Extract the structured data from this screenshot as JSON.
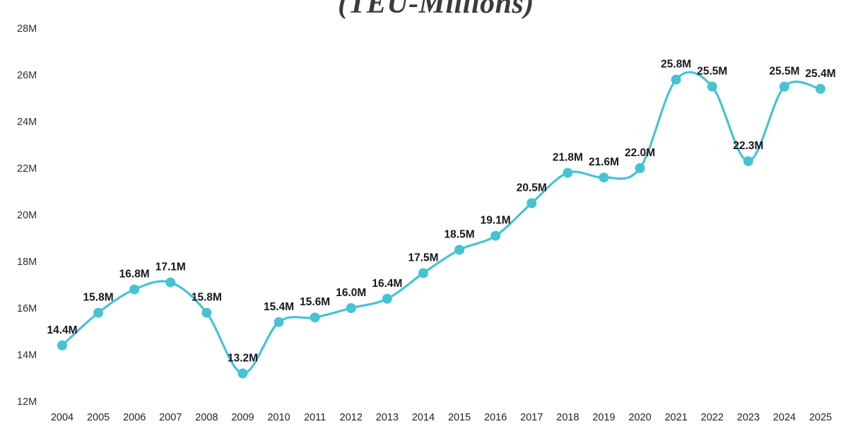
{
  "title": "(TEU-Millions)",
  "colors": {
    "line": "#46C3D2",
    "marker": "#46C3D2",
    "point_label": "#17171e",
    "axis_label": "#2e2e36",
    "title": "#3a3a40",
    "background": "#ffffff"
  },
  "chart_data": {
    "type": "line",
    "title": "(TEU-Millions)",
    "categories": [
      "2004",
      "2005",
      "2006",
      "2007",
      "2008",
      "2009",
      "2010",
      "2011",
      "2012",
      "2013",
      "2014",
      "2015",
      "2016",
      "2017",
      "2018",
      "2019",
      "2020",
      "2021",
      "2022",
      "2023",
      "2024",
      "2025"
    ],
    "values": [
      14.4,
      15.8,
      16.8,
      17.1,
      15.8,
      13.2,
      15.4,
      15.6,
      16.0,
      16.4,
      17.5,
      18.5,
      19.1,
      20.5,
      21.8,
      21.6,
      22.0,
      25.8,
      25.5,
      22.3,
      25.5,
      25.4
    ],
    "point_labels": [
      "14.4M",
      "15.8M",
      "16.8M",
      "17.1M",
      "15.8M",
      "13.2M",
      "15.4M",
      "15.6M",
      "16.0M",
      "16.4M",
      "17.5M",
      "18.5M",
      "19.1M",
      "20.5M",
      "21.8M",
      "21.6M",
      "22.0M",
      "25.8M",
      "25.5M",
      "22.3M",
      "25.5M",
      "25.4M"
    ],
    "y_axis": {
      "ticks": [
        {
          "value": 28,
          "label": "28M"
        },
        {
          "value": 26,
          "label": "26M"
        },
        {
          "value": 24,
          "label": "24M"
        },
        {
          "value": 22,
          "label": "22M"
        },
        {
          "value": 20,
          "label": "20M"
        },
        {
          "value": 18,
          "label": "18M"
        },
        {
          "value": 16,
          "label": "16M"
        },
        {
          "value": 14,
          "label": "14M"
        },
        {
          "value": 12,
          "label": "12M"
        }
      ]
    },
    "ylim": [
      12,
      28
    ],
    "grid": false,
    "legend": null,
    "smooth": true,
    "markers": true
  }
}
